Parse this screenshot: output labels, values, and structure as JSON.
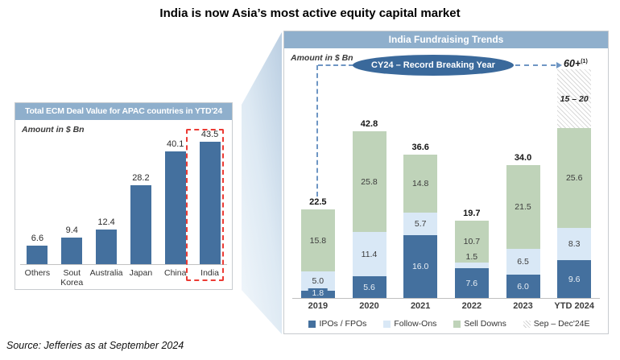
{
  "page_title": "India is now Asia’s most active equity capital market",
  "source": "Source: Jefferies as at September 2024",
  "colors": {
    "header_bg": "#8fafcc",
    "bar_blue": "#44709e",
    "light_blue": "#d9e8f6",
    "green": "#bfd3b9",
    "red_dash": "#ec3b34",
    "arrow_blue": "#6e96c4",
    "ellipse_bg": "#3a699b"
  },
  "chart_data": [
    {
      "type": "bar",
      "title": "Total ECM Deal Value for APAC countries in YTD'24",
      "units_note": "Amount in $ Bn",
      "categories": [
        "Others",
        "Sout\nKorea",
        "Australia",
        "Japan",
        "China",
        "India"
      ],
      "values": [
        "6.6",
        "9.4",
        "12.4",
        "28.2",
        "40.1",
        "43.5"
      ],
      "highlight_category": "India",
      "ylim": [
        0,
        50
      ],
      "grid": false
    },
    {
      "type": "stacked-bar",
      "title": "India Fundraising Trends",
      "units_note": "Amount in $ Bn",
      "categories": [
        "2019",
        "2020",
        "2021",
        "2022",
        "2023",
        "YTD 2024"
      ],
      "series": [
        {
          "name": "IPOs / FPOs",
          "key": "bar_blue",
          "values": [
            "1.8",
            "5.6",
            "16.0",
            "7.6",
            "6.0",
            "9.6"
          ]
        },
        {
          "name": "Follow-Ons",
          "key": "light_blue",
          "values": [
            "5.0",
            "11.4",
            "5.7",
            "1.5",
            "6.5",
            "8.3"
          ]
        },
        {
          "name": "Sell Downs",
          "key": "green",
          "values": [
            "15.8",
            "25.8",
            "14.8",
            "10.7",
            "21.5",
            "25.6"
          ]
        },
        {
          "name": "Sep – Dec'24E",
          "key": "hatch",
          "values": [
            null,
            null,
            null,
            null,
            null,
            "15 – 20"
          ]
        }
      ],
      "totals": [
        "22.5",
        "42.8",
        "36.6",
        "19.7",
        "34.0",
        null
      ],
      "annotation": {
        "ellipse_label": "CY24 – Record Breaking Year",
        "target_label": "60+",
        "target_sup": "(1)"
      },
      "ylim": [
        0,
        65
      ],
      "grid": false,
      "legend_position": "bottom"
    }
  ]
}
